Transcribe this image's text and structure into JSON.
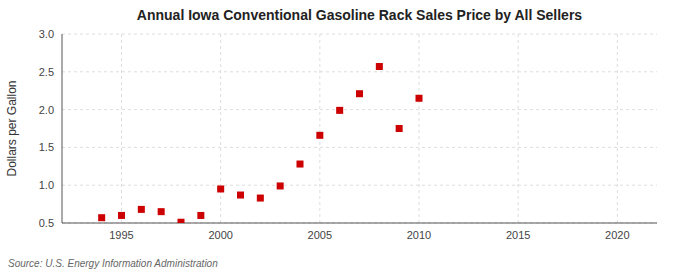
{
  "chart_data": {
    "type": "scatter",
    "title": "Annual Iowa Conventional Gasoline Rack Sales Price by All Sellers",
    "ylabel": "Dollars per Gallon",
    "source": "Source: U.S. Energy Information Administration",
    "x": [
      1994,
      1995,
      1996,
      1997,
      1998,
      1999,
      2000,
      2001,
      2002,
      2003,
      2004,
      2005,
      2006,
      2007,
      2008,
      2009,
      2010
    ],
    "values": [
      0.57,
      0.6,
      0.68,
      0.65,
      0.51,
      0.6,
      0.95,
      0.87,
      0.83,
      0.99,
      1.28,
      1.66,
      1.99,
      2.21,
      2.57,
      1.75,
      2.15
    ],
    "color": "#cc0000",
    "marker": "square",
    "xlim": [
      1992,
      2022
    ],
    "ylim": [
      0.5,
      3.0
    ],
    "xticks": [
      1995,
      2000,
      2005,
      2010,
      2015,
      2020
    ],
    "yticks": [
      0.5,
      {
        "value": 1.0,
        "label": "1.0"
      },
      1.5,
      {
        "value": 2.0,
        "label": "2.0"
      },
      2.5,
      {
        "value": 3.0,
        "label": "3.0"
      }
    ],
    "grid": true
  }
}
